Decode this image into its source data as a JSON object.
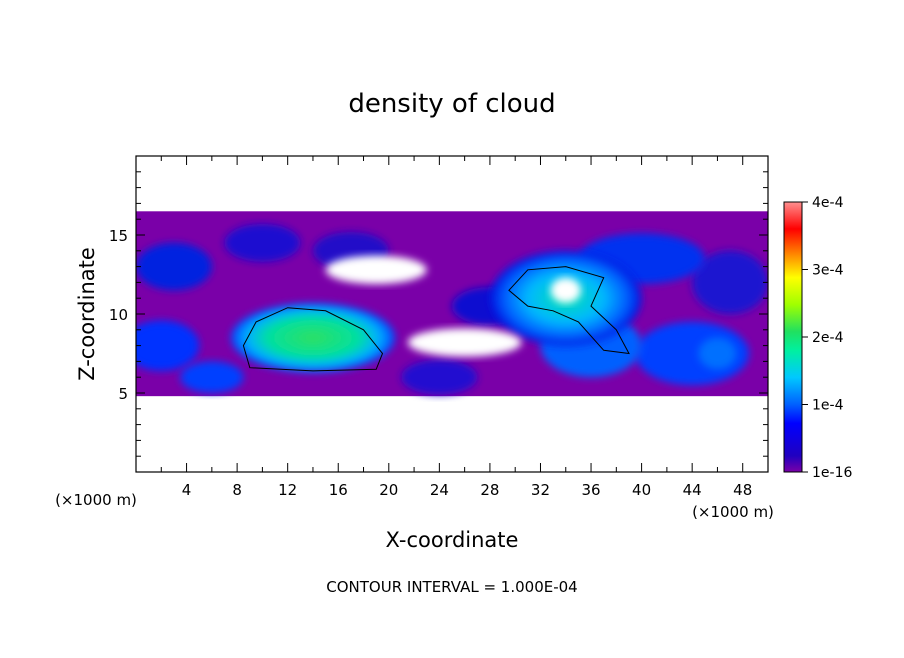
{
  "chart_data": {
    "type": "heatmap",
    "title": "density of cloud",
    "xlabel": "X-coordinate",
    "ylabel": "Z-coordinate",
    "x_unit_label": "(×1000 m)",
    "y_unit_label": "(×1000 m)",
    "footnote": "CONTOUR INTERVAL = 1.000E-04",
    "xlim": [
      0,
      50
    ],
    "ylim": [
      0,
      20
    ],
    "x_ticks": [
      4,
      8,
      12,
      16,
      20,
      24,
      28,
      32,
      36,
      40,
      44,
      48
    ],
    "y_ticks": [
      5,
      10,
      15
    ],
    "colorbar": {
      "labels": [
        "1e-16",
        "1e-4",
        "2e-4",
        "3e-4",
        "4e-4"
      ],
      "range": [
        0,
        0.0004
      ],
      "colors": [
        "#7a00a8",
        "#0000ff",
        "#00c8ff",
        "#00ff80",
        "#ffff00",
        "#ff8000",
        "#ff0000",
        "#ff9090"
      ]
    },
    "regions": [
      {
        "name": "base layer",
        "x": [
          0,
          50
        ],
        "z": [
          4.8,
          16.5
        ],
        "value": 2e-05
      },
      {
        "name": "left cloud core",
        "x_center": 14,
        "z_center": 8.5,
        "x_radius": 6.5,
        "z_radius": 2.2,
        "value": 0.00017
      },
      {
        "name": "right cloud",
        "x_center": 34,
        "z_center": 11,
        "x_radius": 6,
        "z_radius": 3,
        "value": 0.00012
      }
    ]
  }
}
